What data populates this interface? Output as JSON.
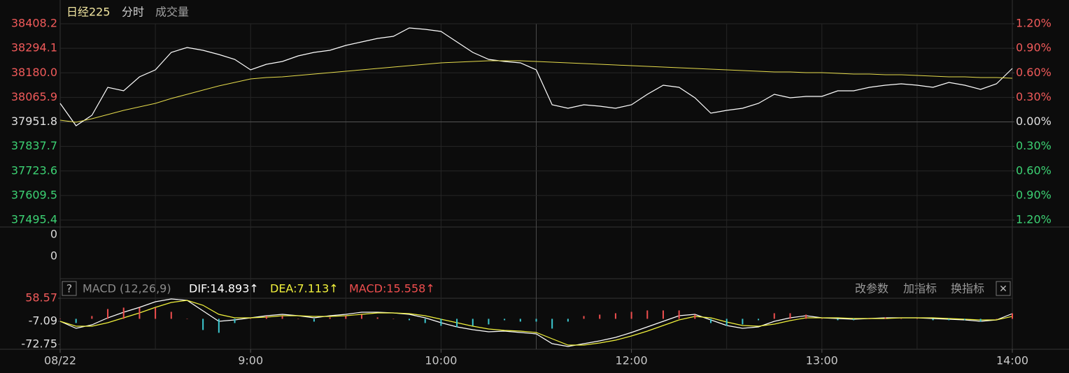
{
  "header": {
    "name": "日经225",
    "tabs": [
      "分时",
      "成交量"
    ]
  },
  "volume_labels": [
    "0",
    "0"
  ],
  "macd_header": {
    "help": "?",
    "controls": [
      "改参数",
      "加指标",
      "换指标"
    ],
    "close": "✕"
  },
  "chart_data": [
    {
      "type": "line",
      "x": [
        0,
        5,
        10,
        15,
        20,
        25,
        30,
        35,
        40,
        45,
        50,
        55,
        60,
        65,
        70,
        75,
        80,
        85,
        90,
        95,
        100,
        105,
        110,
        115,
        120,
        125,
        130,
        135,
        140,
        145,
        150,
        155,
        160,
        165,
        170,
        175,
        180,
        185,
        190,
        195,
        200,
        205,
        210,
        215,
        220,
        225,
        230,
        235,
        240,
        245,
        250,
        255,
        260,
        265,
        270,
        275,
        280,
        285,
        290,
        295,
        300
      ],
      "xlim": [
        0,
        300
      ],
      "xticks": [
        {
          "value": 0,
          "label": "08/22"
        },
        {
          "value": 60,
          "label": "9:00"
        },
        {
          "value": 120,
          "label": "10:00"
        },
        {
          "value": 180,
          "label": "12:00"
        },
        {
          "value": 240,
          "label": "13:00"
        },
        {
          "value": 300,
          "label": "14:00"
        }
      ],
      "ylim": [
        37495.4,
        38408.2
      ],
      "yticks": [
        38408.2,
        38294.1,
        {
          "value": 38180,
          "label": "38180.0"
        },
        38065.9,
        37951.8,
        37837.7,
        37723.6,
        37609.5,
        37495.4
      ],
      "y2lim": [
        -1.2,
        1.2
      ],
      "y2ticks": [
        {
          "value": 1.2,
          "label": "1.20%"
        },
        {
          "value": 0.9,
          "label": "0.90%"
        },
        {
          "value": 0.6,
          "label": "0.60%"
        },
        {
          "value": 0.3,
          "label": "0.30%"
        },
        {
          "value": 0,
          "label": "0.00%"
        },
        {
          "value": -0.3,
          "label": "0.30%"
        },
        {
          "value": -0.6,
          "label": "0.60%"
        },
        {
          "value": -0.9,
          "label": "0.90%"
        },
        {
          "value": -1.2,
          "label": "1.20%"
        }
      ],
      "grid": true,
      "series": [
        {
          "color": "#ffffff",
          "values": [
            38037.9,
            37933.9,
            37982.7,
            38112.6,
            38096.4,
            38161.3,
            38193.8,
            38275.0,
            38297.8,
            38284.8,
            38265.3,
            38242.5,
            38193.8,
            38219.8,
            38232.8,
            38258.8,
            38275.0,
            38284.8,
            38307.5,
            38323.7,
            38340.0,
            38349.7,
            38388.7,
            38382.2,
            38372.5,
            38323.7,
            38275.0,
            38242.5,
            38232.8,
            38226.3,
            38193.8,
            38031.4,
            38015.1,
            38031.4,
            38024.9,
            38015.1,
            38031.4,
            38080.1,
            38122.3,
            38112.6,
            38063.9,
            37992.4,
            38005.4,
            38015.1,
            38037.9,
            38080.1,
            38063.9,
            38070.4,
            38070.4,
            38096.4,
            38096.4,
            38112.6,
            38122.3,
            38128.8,
            38122.3,
            38112.6,
            38135.3,
            38122.3,
            38102.9,
            38128.8,
            38200.3
          ]
        },
        {
          "color": "#e6dc4c",
          "values": [
            37959.9,
            37950.2,
            37966.4,
            37985.9,
            38005.4,
            38021.6,
            38037.9,
            38060.6,
            38080.1,
            38099.6,
            38119.1,
            38135.3,
            38151.6,
            38158.1,
            38161.3,
            38167.8,
            38174.3,
            38180.8,
            38187.3,
            38193.8,
            38200.3,
            38206.8,
            38213.3,
            38219.8,
            38226.3,
            38229.5,
            38232.8,
            38236.0,
            38236.0,
            38236.0,
            38232.8,
            38229.5,
            38226.3,
            38223.0,
            38219.8,
            38216.5,
            38213.3,
            38210.0,
            38206.8,
            38203.6,
            38200.3,
            38197.1,
            38193.8,
            38190.6,
            38187.3,
            38184.1,
            38184.1,
            38180.8,
            38180.8,
            38177.6,
            38174.3,
            38174.3,
            38171.1,
            38171.1,
            38167.8,
            38164.6,
            38161.3,
            38161.3,
            38158.1,
            38158.1,
            38154.8
          ]
        }
      ]
    },
    {
      "type": "macd",
      "title": "MACD (12,26,9)",
      "x": [
        0,
        5,
        10,
        15,
        20,
        25,
        30,
        35,
        40,
        45,
        50,
        55,
        60,
        65,
        70,
        75,
        80,
        85,
        90,
        95,
        100,
        105,
        110,
        115,
        120,
        125,
        130,
        135,
        140,
        145,
        150,
        155,
        160,
        165,
        170,
        175,
        180,
        185,
        190,
        195,
        200,
        205,
        210,
        215,
        220,
        225,
        230,
        235,
        240,
        245,
        250,
        255,
        260,
        265,
        270,
        275,
        280,
        285,
        290,
        295,
        300
      ],
      "xlim": [
        0,
        300
      ],
      "ylim": [
        -72.75,
        58.57
      ],
      "yticks": [
        58.57,
        -7.09,
        -72.75
      ],
      "series": [
        {
          "name": "DIF:14.893↑",
          "color": "#ffffff",
          "values": [
            -7.1,
            -27.0,
            -17.05,
            2.85,
            18.77,
            32.7,
            48.62,
            56.58,
            52.6,
            22.75,
            -7.1,
            -3.12,
            2.85,
            8.82,
            12.8,
            8.82,
            2.85,
            8.82,
            12.8,
            18.77,
            18.77,
            16.78,
            12.8,
            2.85,
            -11.08,
            -23.02,
            -30.98,
            -36.95,
            -34.96,
            -38.94,
            -42.92,
            -70.78,
            -78.74,
            -70.78,
            -62.82,
            -52.87,
            -38.94,
            -23.02,
            -7.1,
            8.82,
            12.8,
            -3.12,
            -19.04,
            -27.0,
            -23.02,
            -7.1,
            2.85,
            8.82,
            2.85,
            0.86,
            -1.13,
            0.86,
            2.85,
            2.85,
            2.85,
            0.86,
            -1.13,
            -3.12,
            -7.1,
            -3.12,
            14.893
          ]
        },
        {
          "name": "DEA:7.113↑",
          "color": "#f2f23c",
          "values": [
            -7.1,
            -21.03,
            -21.03,
            -11.08,
            2.85,
            16.78,
            32.7,
            46.63,
            52.6,
            38.67,
            12.8,
            2.85,
            2.85,
            4.84,
            8.82,
            8.82,
            6.83,
            6.83,
            8.82,
            12.8,
            16.78,
            16.78,
            14.79,
            8.82,
            -1.13,
            -11.08,
            -21.03,
            -28.99,
            -32.97,
            -34.96,
            -38.94,
            -56.85,
            -74.76,
            -74.76,
            -68.79,
            -60.83,
            -48.89,
            -34.96,
            -19.04,
            -3.12,
            6.83,
            2.85,
            -9.09,
            -19.04,
            -21.03,
            -15.06,
            -5.11,
            2.85,
            2.85,
            2.85,
            0.86,
            0.86,
            0.86,
            2.85,
            2.85,
            2.85,
            0.86,
            -1.13,
            -3.12,
            -3.12,
            7.113
          ]
        },
        {
          "name": "MACD:15.558↑",
          "type": "bar",
          "color": "#ee4e4e",
          "neg_color": "#3cc8d0",
          "values": [
            0,
            -11.94,
            7.96,
            27.86,
            31.84,
            31.84,
            31.84,
            19.9,
            0,
            -31.84,
            -39.8,
            -11.94,
            0,
            7.96,
            7.96,
            0,
            -7.96,
            3.98,
            7.96,
            11.94,
            3.98,
            0,
            -3.98,
            -11.94,
            -19.9,
            -23.88,
            -19.9,
            -15.92,
            -3.98,
            -7.96,
            -7.96,
            -27.86,
            -7.96,
            7.96,
            11.94,
            15.92,
            19.9,
            23.88,
            23.88,
            23.88,
            11.94,
            -11.94,
            -19.9,
            -15.92,
            -3.98,
            15.92,
            15.92,
            11.94,
            0,
            -3.98,
            -3.98,
            0,
            3.98,
            0,
            0,
            -3.98,
            -3.98,
            -3.98,
            -7.96,
            0,
            15.558
          ]
        }
      ]
    }
  ]
}
